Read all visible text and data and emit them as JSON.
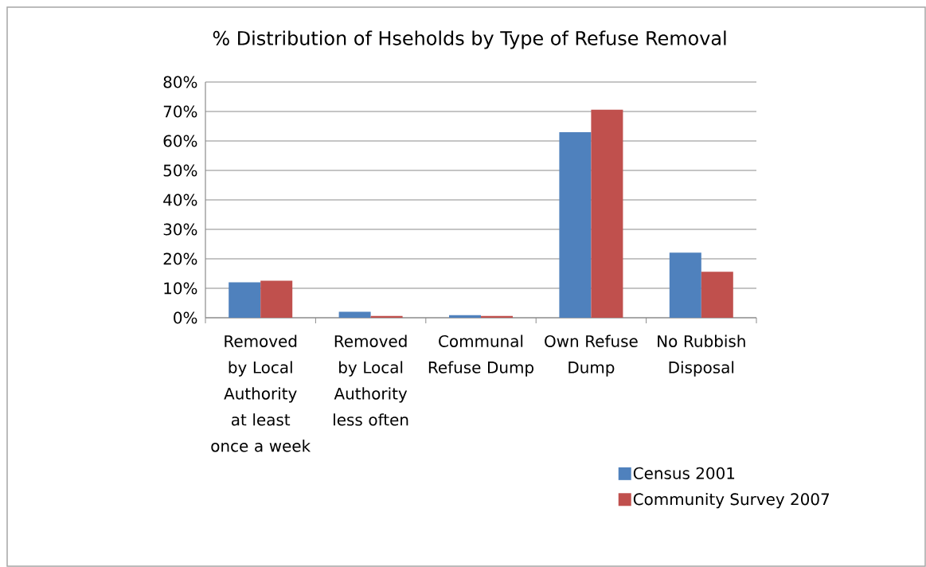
{
  "chart_data": {
    "type": "bar",
    "title": "% Distribution of Hseholds by Type of Refuse Removal",
    "categories": [
      "Removed by Local Authority at least once a week",
      "Removed by Local Authority less often",
      "Communal Refuse Dump",
      "Own Refuse Dump",
      "No Rubbish Disposal"
    ],
    "series": [
      {
        "name": "Census 2001",
        "color": "#4f81bd",
        "values": [
          12.0,
          2.0,
          0.9,
          63.0,
          22.1
        ]
      },
      {
        "name": "Community Survey 2007",
        "color": "#c0504d",
        "values": [
          12.6,
          0.6,
          0.6,
          70.6,
          15.6
        ]
      }
    ],
    "ylim": [
      0,
      80
    ],
    "yticks": [
      {
        "value": 0,
        "label": "0%"
      },
      {
        "value": 10,
        "label": "10%"
      },
      {
        "value": 20,
        "label": "20%"
      },
      {
        "value": 30,
        "label": "30%"
      },
      {
        "value": 40,
        "label": "40%"
      },
      {
        "value": 50,
        "label": "50%"
      },
      {
        "value": 60,
        "label": "60%"
      },
      {
        "value": 70,
        "label": "70%"
      },
      {
        "value": 80,
        "label": "80%"
      }
    ],
    "grid": "y",
    "legend": "bottom right"
  }
}
